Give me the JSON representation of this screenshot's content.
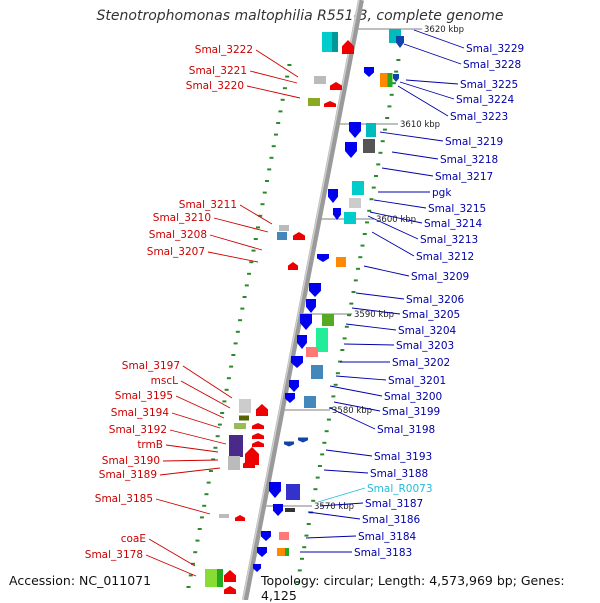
{
  "title": "Stenotrophomonas maltophilia R551-3, complete genome",
  "accession": "Accession: NC_011071",
  "topology": "Topology: circular; Length: 4,573,969 bp; Genes: 4,125",
  "colors": {
    "left_label": "#cc0000",
    "right_label": "#0000aa",
    "rna_label": "#22bbdd",
    "backbone": "#aaaaaa",
    "tick": "#2a8a2a"
  },
  "ruler": [
    {
      "label": "3620 kbp"
    },
    {
      "label": "3610 kbp"
    },
    {
      "label": "3600 kbp"
    },
    {
      "label": "3590 kbp"
    },
    {
      "label": "3580 kbp"
    },
    {
      "label": "3570 kbp"
    }
  ],
  "left_labels": [
    {
      "text": "Smal_3222"
    },
    {
      "text": "Smal_3221"
    },
    {
      "text": "Smal_3220"
    },
    {
      "text": "Smal_3211"
    },
    {
      "text": "Smal_3210"
    },
    {
      "text": "Smal_3208"
    },
    {
      "text": "Smal_3207"
    },
    {
      "text": "Smal_3197"
    },
    {
      "text": "mscL"
    },
    {
      "text": "Smal_3195"
    },
    {
      "text": "Smal_3194"
    },
    {
      "text": "Smal_3192"
    },
    {
      "text": "trmB"
    },
    {
      "text": "Smal_3190"
    },
    {
      "text": "Smal_3189"
    },
    {
      "text": "Smal_3185"
    },
    {
      "text": "coaE"
    },
    {
      "text": "Smal_3178"
    }
  ],
  "right_labels": [
    {
      "text": "Smal_3229",
      "rna": false
    },
    {
      "text": "Smal_3228",
      "rna": false
    },
    {
      "text": "Smal_3225",
      "rna": false
    },
    {
      "text": "Smal_3224",
      "rna": false
    },
    {
      "text": "Smal_3223",
      "rna": false
    },
    {
      "text": "Smal_3219",
      "rna": false
    },
    {
      "text": "Smal_3218",
      "rna": false
    },
    {
      "text": "Smal_3217",
      "rna": false
    },
    {
      "text": "pgk",
      "rna": false
    },
    {
      "text": "Smal_3215",
      "rna": false
    },
    {
      "text": "Smal_3214",
      "rna": false
    },
    {
      "text": "Smal_3213",
      "rna": false
    },
    {
      "text": "Smal_3212",
      "rna": false
    },
    {
      "text": "Smal_3209",
      "rna": false
    },
    {
      "text": "Smal_3206",
      "rna": false
    },
    {
      "text": "Smal_3205",
      "rna": false
    },
    {
      "text": "Smal_3204",
      "rna": false
    },
    {
      "text": "Smal_3203",
      "rna": false
    },
    {
      "text": "Smal_3202",
      "rna": false
    },
    {
      "text": "Smal_3201",
      "rna": false
    },
    {
      "text": "Smal_3200",
      "rna": false
    },
    {
      "text": "Smal_3199",
      "rna": false
    },
    {
      "text": "Smal_3198",
      "rna": false
    },
    {
      "text": "Smal_3193",
      "rna": false
    },
    {
      "text": "Smal_3188",
      "rna": false
    },
    {
      "text": "Smal_R0073",
      "rna": true
    },
    {
      "text": "Smal_3187",
      "rna": false
    },
    {
      "text": "Smal_3186",
      "rna": false
    },
    {
      "text": "Smal_3184",
      "rna": false
    },
    {
      "text": "Smal_3183",
      "rna": false
    }
  ]
}
